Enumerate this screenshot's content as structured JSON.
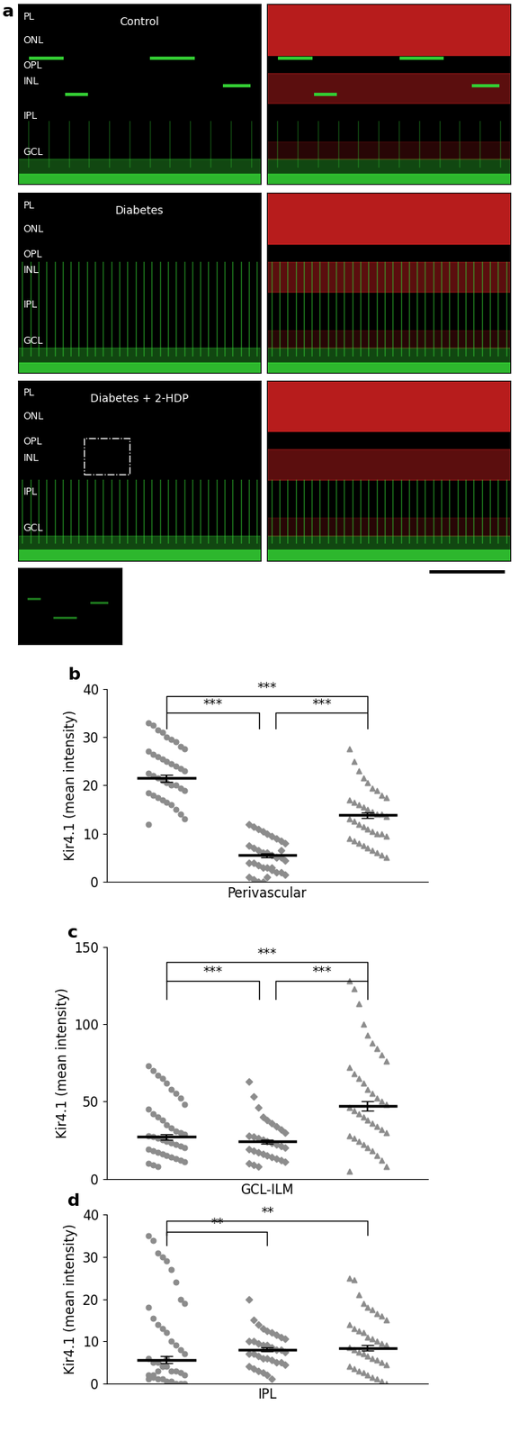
{
  "panel_a": {
    "label": "a",
    "layers": [
      "PL",
      "ONL",
      "OPL",
      "INL",
      "IPL",
      "GCL"
    ],
    "rows": [
      "Control",
      "Diabetes",
      "Diabetes + 2-HDP"
    ]
  },
  "chart_data": [
    {
      "type": "scatter",
      "panel": "b",
      "x_label": "Perivascular",
      "y_label": "Kir4.1 (mean intensity)",
      "ylim": [
        0,
        40
      ],
      "yticks": [
        0,
        10,
        20,
        30,
        40
      ],
      "tick_labels": "y",
      "series": [
        {
          "marker": "circle",
          "color": "#8c8c8c",
          "mean": 21.5,
          "sem": 0.7,
          "values": [
            33,
            32.5,
            31.5,
            31,
            30,
            29.5,
            29,
            28,
            27.5,
            27,
            26.5,
            26,
            25.5,
            25,
            24.5,
            24,
            23.5,
            23,
            22.5,
            22,
            21.5,
            21,
            20.5,
            20,
            20,
            19.5,
            19,
            18.5,
            18,
            17.5,
            17,
            16.5,
            16,
            15,
            14,
            13,
            12
          ]
        },
        {
          "marker": "diamond",
          "color": "#8c8c8c",
          "mean": 5.5,
          "sem": 0.45,
          "values": [
            12,
            11.5,
            11,
            10.5,
            10,
            9.5,
            9,
            8.5,
            8,
            7.5,
            7,
            6.5,
            6,
            6,
            5.5,
            5,
            5,
            4.5,
            4,
            4,
            3.5,
            3,
            3,
            2.5,
            2,
            2,
            1.5,
            1,
            0.5,
            0,
            0,
            1,
            3,
            5,
            6.5
          ]
        },
        {
          "marker": "triangle",
          "color": "#8c8c8c",
          "mean": 13.8,
          "sem": 0.6,
          "values": [
            27.5,
            25,
            23,
            21.5,
            20.5,
            19.5,
            19,
            18,
            17.5,
            17,
            16.5,
            16,
            15.5,
            15,
            14.5,
            14,
            14,
            13.5,
            13,
            12.5,
            12,
            11.5,
            11,
            10.5,
            10,
            10,
            9.5,
            9,
            8.5,
            8,
            7.5,
            7,
            6.5,
            6,
            5.5,
            5
          ]
        }
      ],
      "annotations": [
        {
          "from": 0,
          "to": 1,
          "y": 35,
          "text": "***"
        },
        {
          "from": 1,
          "to": 2,
          "y": 35,
          "text": "***"
        },
        {
          "from": 0,
          "to": 2,
          "y": 38.5,
          "text": "***"
        }
      ]
    },
    {
      "type": "scatter",
      "panel": "c",
      "x_label": "GCL-ILM",
      "y_label": "Kir4.1 (mean intensity)",
      "ylim": [
        0,
        150
      ],
      "yticks": [
        0,
        50,
        100,
        150
      ],
      "tick_labels": "y",
      "series": [
        {
          "marker": "circle",
          "color": "#8c8c8c",
          "mean": 27,
          "sem": 1.8,
          "values": [
            73,
            70,
            67,
            65,
            62,
            58,
            55,
            52,
            48,
            45,
            42,
            40,
            38,
            35,
            33,
            31,
            30,
            29,
            28,
            27,
            26,
            25,
            24,
            23,
            22,
            21,
            20,
            19,
            18,
            17,
            16,
            15,
            14,
            13,
            12,
            11,
            10,
            9,
            8
          ]
        },
        {
          "marker": "diamond",
          "color": "#8c8c8c",
          "mean": 24,
          "sem": 1.4,
          "values": [
            63,
            53,
            46,
            40,
            38,
            36,
            34,
            32,
            30,
            28,
            27,
            26,
            25,
            24,
            23,
            22,
            21,
            20,
            19,
            18,
            17,
            16,
            15,
            14,
            13,
            12,
            11,
            10,
            9,
            8
          ]
        },
        {
          "marker": "triangle",
          "color": "#8c8c8c",
          "mean": 47,
          "sem": 3,
          "values": [
            128,
            123,
            113,
            100,
            93,
            88,
            84,
            80,
            76,
            72,
            68,
            65,
            62,
            58,
            55,
            52,
            50,
            48,
            46,
            44,
            42,
            40,
            38,
            36,
            34,
            32,
            30,
            28,
            26,
            24,
            22,
            20,
            18,
            15,
            12,
            8,
            5
          ]
        }
      ],
      "annotations": [
        {
          "from": 0,
          "to": 1,
          "y": 128,
          "text": "***"
        },
        {
          "from": 1,
          "to": 2,
          "y": 128,
          "text": "***"
        },
        {
          "from": 0,
          "to": 2,
          "y": 140,
          "text": "***"
        }
      ]
    },
    {
      "type": "scatter",
      "panel": "d",
      "x_label": "IPL",
      "y_label": "Kir4.1 (mean intensity)",
      "ylim": [
        0,
        40
      ],
      "yticks": [
        0,
        10,
        20,
        30,
        40
      ],
      "tick_labels": "y",
      "series": [
        {
          "marker": "circle",
          "color": "#8c8c8c",
          "mean": 5.6,
          "sem": 0.8,
          "values": [
            35,
            34,
            31,
            30,
            29,
            27,
            24,
            20,
            19,
            18,
            15.5,
            14,
            13,
            12,
            10,
            9,
            8,
            7,
            6,
            5,
            5,
            4,
            4,
            3,
            3,
            2.5,
            2,
            2,
            1.5,
            1,
            1,
            0.5,
            0.5,
            0,
            0,
            0,
            1,
            2,
            3,
            4,
            6,
            0.3
          ]
        },
        {
          "marker": "diamond",
          "color": "#8c8c8c",
          "mean": 8,
          "sem": 0.45,
          "values": [
            20,
            15,
            14,
            13,
            12.5,
            12,
            11.5,
            11,
            10.5,
            10,
            10,
            9.5,
            9,
            9,
            8.5,
            8,
            8,
            7.5,
            7,
            7,
            6.5,
            6,
            6,
            5.5,
            5,
            5,
            4.5,
            4,
            3.5,
            3,
            2.5,
            2,
            1
          ]
        },
        {
          "marker": "triangle",
          "color": "#8c8c8c",
          "mean": 8.4,
          "sem": 0.7,
          "values": [
            25,
            24.5,
            21,
            19,
            18,
            17.5,
            16.5,
            16,
            15,
            14,
            13,
            12.5,
            12,
            11,
            10.5,
            10,
            9.5,
            9,
            8.5,
            8,
            7.5,
            7,
            6.5,
            6,
            5.5,
            5,
            4.5,
            4,
            3.5,
            3,
            2.5,
            2,
            1.5,
            1,
            0.5,
            0
          ]
        }
      ],
      "annotations": [
        {
          "from": 0,
          "to": 1,
          "y": 36,
          "text": "**"
        },
        {
          "from": 0,
          "to": 2,
          "y": 38.5,
          "text": "**"
        }
      ]
    }
  ]
}
